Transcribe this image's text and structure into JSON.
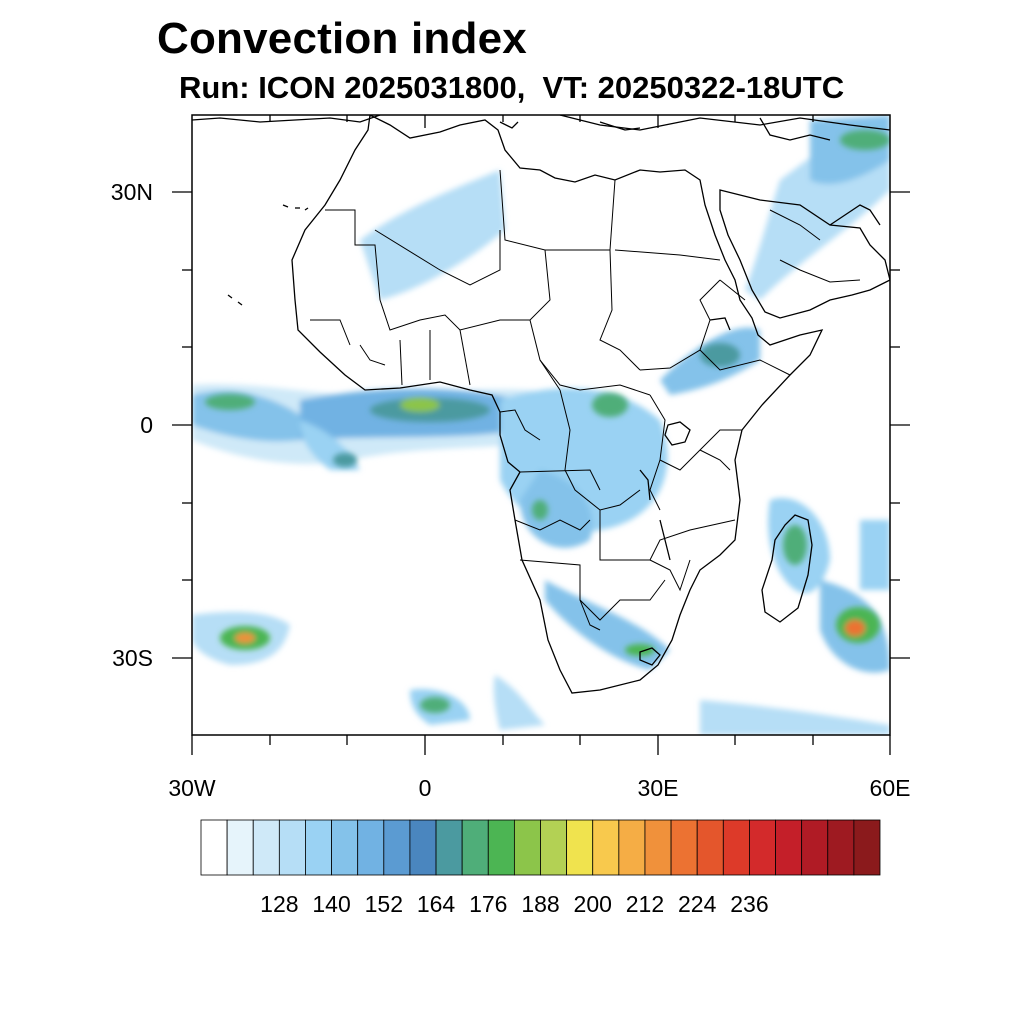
{
  "title": "Convection index",
  "subtitle": "Run: ICON 2025031800,  VT: 20250322-18UTC",
  "axes": {
    "lon_labels": [
      "30W",
      "0",
      "30E",
      "60E"
    ],
    "lat_labels": [
      "30N",
      "0",
      "30S"
    ]
  },
  "colorbar": {
    "labels": [
      "128",
      "140",
      "152",
      "164",
      "176",
      "188",
      "200",
      "212",
      "224",
      "236"
    ],
    "colors": [
      "#ffffff",
      "#e6f4fb",
      "#cfe9f8",
      "#b6def6",
      "#9ad2f3",
      "#84c2ea",
      "#71b2e3",
      "#5b9bd2",
      "#4a86bf",
      "#4b9aa0",
      "#4fae79",
      "#4cb553",
      "#8cc54a",
      "#b3d154",
      "#f0e34e",
      "#f8c94d",
      "#f5ad45",
      "#f0913b",
      "#ec7232",
      "#e4562c",
      "#dd3a29",
      "#d32a2b",
      "#c41f29",
      "#b01b25",
      "#9e1a21",
      "#8b1a1c"
    ]
  }
}
